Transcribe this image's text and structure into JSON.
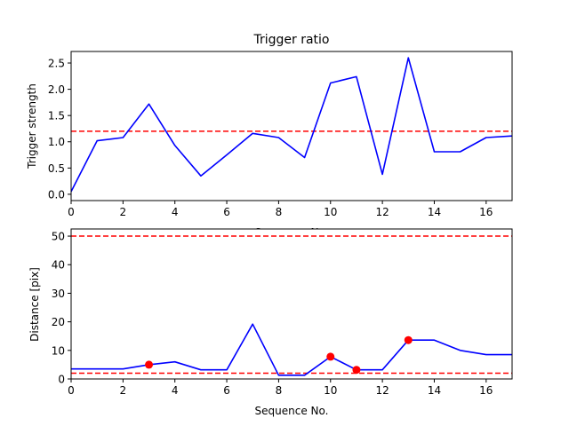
{
  "chart_data": [
    {
      "type": "line",
      "title": "Trigger ratio",
      "xlabel": "Sequence No.",
      "ylabel": "Trigger strength",
      "xlim": [
        0,
        17
      ],
      "ylim": [
        -0.12,
        2.72
      ],
      "xticks": [
        "0",
        "2",
        "4",
        "6",
        "8",
        "10",
        "12",
        "14",
        "16"
      ],
      "yticks": [
        "0.0",
        "0.5",
        "1.0",
        "1.5",
        "2.0",
        "2.5"
      ],
      "grid": false,
      "series": [
        {
          "color": "#0000ff",
          "x": [
            0,
            1,
            2,
            3,
            4,
            5,
            6,
            7,
            8,
            9,
            10,
            11,
            12,
            13,
            14,
            15,
            16,
            17
          ],
          "y": [
            0.05,
            1.02,
            1.08,
            1.72,
            0.93,
            0.35,
            0.75,
            1.16,
            1.08,
            0.7,
            2.12,
            2.24,
            0.38,
            2.6,
            0.81,
            0.81,
            1.08,
            1.11
          ]
        }
      ],
      "hlines": [
        {
          "y": 1.2,
          "color": "#ff0000",
          "style": "dashed"
        }
      ]
    },
    {
      "type": "line",
      "title": "",
      "xlabel": "Sequence No.",
      "ylabel": "Distance [pix]",
      "xlim": [
        0,
        17
      ],
      "ylim": [
        0,
        52.5
      ],
      "xticks": [
        "0",
        "2",
        "4",
        "6",
        "8",
        "10",
        "12",
        "14",
        "16"
      ],
      "yticks": [
        "0",
        "10",
        "20",
        "30",
        "40",
        "50"
      ],
      "grid": false,
      "series": [
        {
          "color": "#0000ff",
          "x": [
            0,
            1,
            2,
            3,
            4,
            5,
            6,
            7,
            8,
            9,
            10,
            11,
            12,
            13,
            14,
            15,
            16,
            17
          ],
          "y": [
            3.5,
            3.5,
            3.5,
            5.0,
            6.0,
            3.2,
            3.2,
            19.2,
            1.3,
            1.3,
            7.8,
            3.2,
            3.2,
            13.6,
            13.6,
            10.0,
            8.5,
            8.5
          ]
        }
      ],
      "markers": {
        "color": "#ff0000",
        "x": [
          3,
          10,
          11,
          13
        ],
        "y": [
          5.0,
          7.8,
          3.2,
          13.6
        ]
      },
      "hlines": [
        {
          "y": 50,
          "color": "#ff0000",
          "style": "dashed"
        },
        {
          "y": 2,
          "color": "#ff0000",
          "style": "dashed"
        }
      ]
    }
  ]
}
